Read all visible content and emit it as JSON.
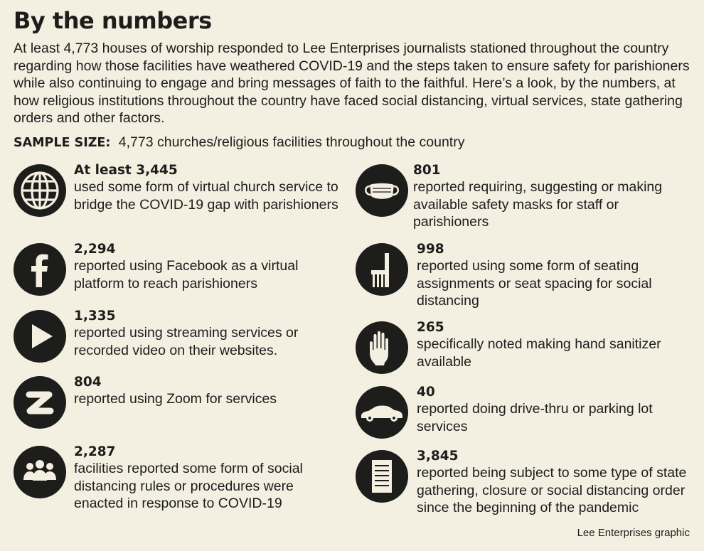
{
  "title": "By the numbers",
  "intro": "At least 4,773 houses of worship responded to Lee Enterprises journalists stationed throughout the country regarding how those facilities have weathered COVID-19 and the steps taken to ensure safety for parishioners while also continuing to engage and bring messages of faith to the faithful. Here’s a look, by the numbers, at how religious institutions throughout the country have faced social distancing, virtual services, state gathering orders and other factors.",
  "sample": {
    "label": "SAMPLE SIZE:",
    "value": "4,773 churches/religious facilities throughout the country"
  },
  "left_items": [
    {
      "icon": "globe-icon",
      "number": "At least 3,445",
      "description": "used some form of virtual church service to bridge the COVID-19 gap with parishioners"
    },
    {
      "icon": "facebook-icon",
      "number": "2,294",
      "description": "reported using Facebook as a virtual platform to reach parishioners"
    },
    {
      "icon": "play-icon",
      "number": "1,335",
      "description": "reported using streaming services or recorded video on their websites."
    },
    {
      "icon": "zoom-icon",
      "number": "804",
      "description": "reported using Zoom for services"
    },
    {
      "icon": "people-icon",
      "number": "2,287",
      "description": "facilities reported some form of social distancing rules or procedures were enacted in response to COVID-19"
    }
  ],
  "right_items": [
    {
      "icon": "mask-icon",
      "number": "801",
      "description": "reported requiring, suggesting or making available safety masks for staff or parishioners"
    },
    {
      "icon": "chair-icon",
      "number": "998",
      "description": "reported using some form of seating assignments or seat spacing for social distancing"
    },
    {
      "icon": "hand-icon",
      "number": "265",
      "description": "specifically noted making hand sanitizer available"
    },
    {
      "icon": "car-icon",
      "number": "40",
      "description": "reported doing drive-thru or parking lot services"
    },
    {
      "icon": "document-icon",
      "number": "3,845",
      "description": "reported being subject to some type of state gathering, closure or social distancing order since the beginning of the pandemic"
    }
  ],
  "credit": "Lee Enterprises graphic",
  "colors": {
    "background": "#f3efe1",
    "ink": "#1d1d1b"
  }
}
